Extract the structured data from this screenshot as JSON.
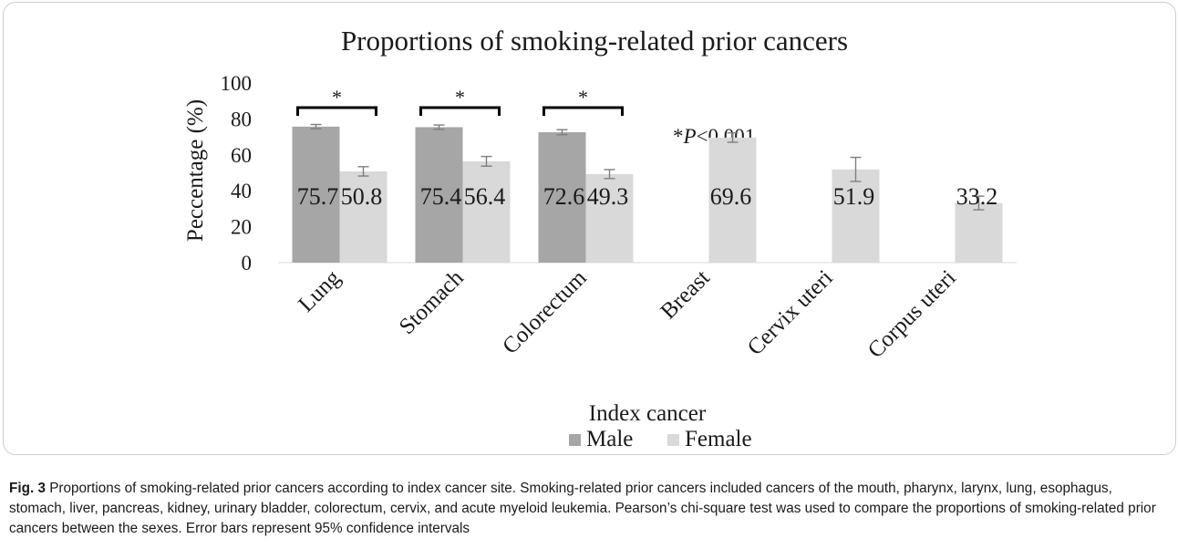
{
  "chart_data": {
    "type": "bar",
    "title": "Proportions of smoking-related prior cancers",
    "xlabel": "Index cancer",
    "ylabel": "Peccentage (%)",
    "ylim": [
      0,
      100
    ],
    "yticks": [
      0,
      20,
      40,
      60,
      80,
      100
    ],
    "categories": [
      "Lung",
      "Stomach",
      "Colorectum",
      "Breast",
      "Cervix uteri",
      "Corpus uteri"
    ],
    "series": [
      {
        "name": "Male",
        "color": "#a6a6a6",
        "values": [
          75.7,
          75.4,
          72.6,
          null,
          null,
          null
        ],
        "ci": [
          [
            74.5,
            76.9
          ],
          [
            74.2,
            76.6
          ],
          [
            71.2,
            74.0
          ],
          null,
          null,
          null
        ],
        "labels": [
          "75.7",
          "75.4",
          "72.6",
          "",
          "",
          ""
        ]
      },
      {
        "name": "Female",
        "color": "#d9d9d9",
        "values": [
          50.8,
          56.4,
          49.3,
          69.6,
          51.9,
          33.2
        ],
        "ci": [
          [
            48.2,
            53.4
          ],
          [
            53.7,
            59.1
          ],
          [
            46.8,
            51.8
          ],
          [
            67.0,
            72.2
          ],
          [
            45.2,
            58.6
          ],
          [
            29.4,
            37.0
          ]
        ],
        "labels": [
          "50.8",
          "56.4",
          "49.3",
          "69.6",
          "51.9",
          "33.2"
        ]
      }
    ],
    "significance_marker": "*",
    "significant_categories": [
      0,
      1,
      2
    ],
    "annotation": {
      "prefix": "*",
      "italic": "P",
      "suffix": "<0.001"
    },
    "legend_position": "bottom",
    "grid": false
  },
  "caption": {
    "label": "Fig. 3",
    "text": " Proportions of smoking-related prior cancers according to index cancer site. Smoking-related prior cancers included cancers of the mouth, pharynx, larynx, lung, esophagus, stomach, liver, pancreas, kidney, urinary bladder, colorectum, cervix, and acute myeloid leukemia. Pearson’s chi-square test was used to compare the proportions of smoking-related prior cancers between the sexes. Error bars represent 95% confidence intervals"
  }
}
